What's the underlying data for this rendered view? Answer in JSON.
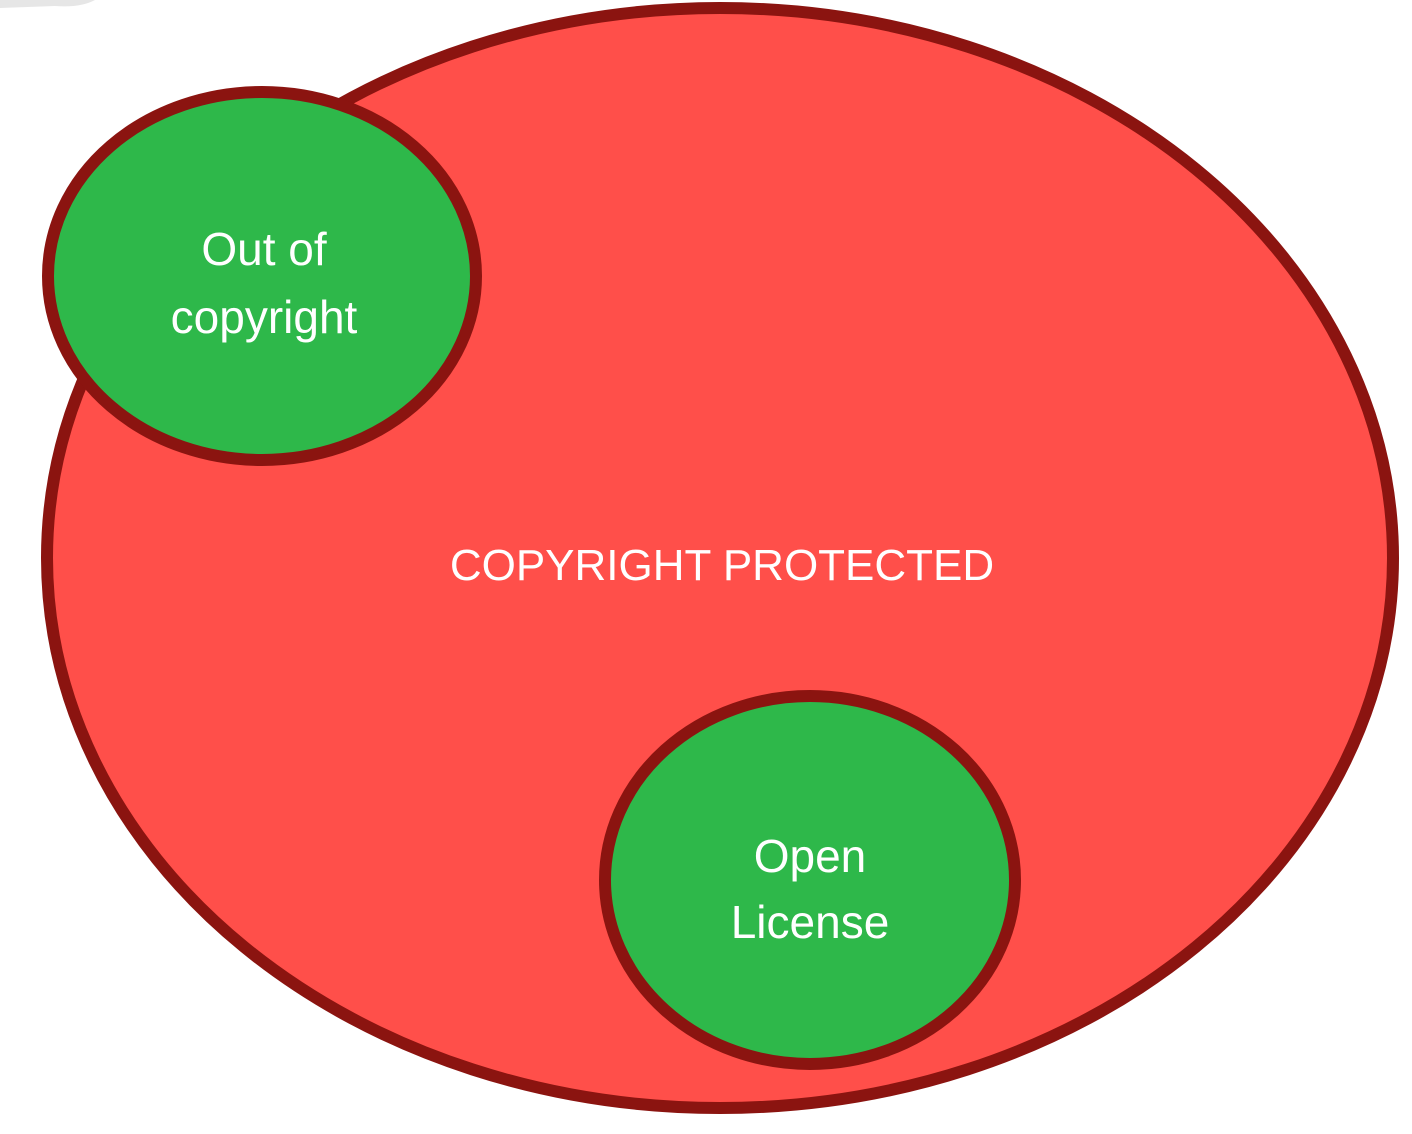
{
  "diagram": {
    "colors": {
      "outer_fill": "#FF4F4A",
      "outline": "#8B1410",
      "inner_fill": "#2EB84A",
      "text": "#FFFFFF"
    },
    "outer_region": {
      "label": "COPYRIGHT PROTECTED"
    },
    "out_of_copyright": {
      "line1": "Out of",
      "line2": "copyright"
    },
    "open_license": {
      "line1": "Open",
      "line2": "License"
    }
  }
}
